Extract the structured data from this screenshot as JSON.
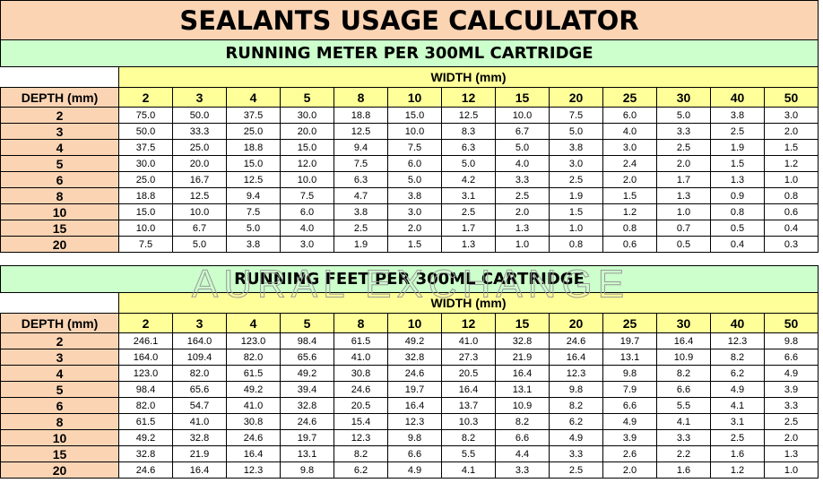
{
  "title": "SEALANTS USAGE CALCULATOR",
  "watermark": "AURAL EXCHANGE",
  "tables": [
    {
      "title": "RUNNING METER PER 300ML CARTRIDGE",
      "width_label": "WIDTH (mm)",
      "depth_label": "DEPTH (mm)",
      "widths": [
        "2",
        "3",
        "4",
        "5",
        "8",
        "10",
        "12",
        "15",
        "20",
        "25",
        "30",
        "40",
        "50"
      ],
      "rows": [
        {
          "depth": "2",
          "values": [
            "75.0",
            "50.0",
            "37.5",
            "30.0",
            "18.8",
            "15.0",
            "12.5",
            "10.0",
            "7.5",
            "6.0",
            "5.0",
            "3.8",
            "3.0"
          ]
        },
        {
          "depth": "3",
          "values": [
            "50.0",
            "33.3",
            "25.0",
            "20.0",
            "12.5",
            "10.0",
            "8.3",
            "6.7",
            "5.0",
            "4.0",
            "3.3",
            "2.5",
            "2.0"
          ]
        },
        {
          "depth": "4",
          "values": [
            "37.5",
            "25.0",
            "18.8",
            "15.0",
            "9.4",
            "7.5",
            "6.3",
            "5.0",
            "3.8",
            "3.0",
            "2.5",
            "1.9",
            "1.5"
          ]
        },
        {
          "depth": "5",
          "values": [
            "30.0",
            "20.0",
            "15.0",
            "12.0",
            "7.5",
            "6.0",
            "5.0",
            "4.0",
            "3.0",
            "2.4",
            "2.0",
            "1.5",
            "1.2"
          ]
        },
        {
          "depth": "6",
          "values": [
            "25.0",
            "16.7",
            "12.5",
            "10.0",
            "6.3",
            "5.0",
            "4.2",
            "3.3",
            "2.5",
            "2.0",
            "1.7",
            "1.3",
            "1.0"
          ]
        },
        {
          "depth": "8",
          "values": [
            "18.8",
            "12.5",
            "9.4",
            "7.5",
            "4.7",
            "3.8",
            "3.1",
            "2.5",
            "1.9",
            "1.5",
            "1.3",
            "0.9",
            "0.8"
          ]
        },
        {
          "depth": "10",
          "values": [
            "15.0",
            "10.0",
            "7.5",
            "6.0",
            "3.8",
            "3.0",
            "2.5",
            "2.0",
            "1.5",
            "1.2",
            "1.0",
            "0.8",
            "0.6"
          ]
        },
        {
          "depth": "15",
          "values": [
            "10.0",
            "6.7",
            "5.0",
            "4.0",
            "2.5",
            "2.0",
            "1.7",
            "1.3",
            "1.0",
            "0.8",
            "0.7",
            "0.5",
            "0.4"
          ]
        },
        {
          "depth": "20",
          "values": [
            "7.5",
            "5.0",
            "3.8",
            "3.0",
            "1.9",
            "1.5",
            "1.3",
            "1.0",
            "0.8",
            "0.6",
            "0.5",
            "0.4",
            "0.3"
          ]
        }
      ]
    },
    {
      "title": "RUNNING FEET PER 300ML CARTRIDGE",
      "width_label": "WIDTH (mm)",
      "depth_label": "DEPTH (mm)",
      "widths": [
        "2",
        "3",
        "4",
        "5",
        "8",
        "10",
        "12",
        "15",
        "20",
        "25",
        "30",
        "40",
        "50"
      ],
      "rows": [
        {
          "depth": "2",
          "values": [
            "246.1",
            "164.0",
            "123.0",
            "98.4",
            "61.5",
            "49.2",
            "41.0",
            "32.8",
            "24.6",
            "19.7",
            "16.4",
            "12.3",
            "9.8"
          ]
        },
        {
          "depth": "3",
          "values": [
            "164.0",
            "109.4",
            "82.0",
            "65.6",
            "41.0",
            "32.8",
            "27.3",
            "21.9",
            "16.4",
            "13.1",
            "10.9",
            "8.2",
            "6.6"
          ]
        },
        {
          "depth": "4",
          "values": [
            "123.0",
            "82.0",
            "61.5",
            "49.2",
            "30.8",
            "24.6",
            "20.5",
            "16.4",
            "12.3",
            "9.8",
            "8.2",
            "6.2",
            "4.9"
          ]
        },
        {
          "depth": "5",
          "values": [
            "98.4",
            "65.6",
            "49.2",
            "39.4",
            "24.6",
            "19.7",
            "16.4",
            "13.1",
            "9.8",
            "7.9",
            "6.6",
            "4.9",
            "3.9"
          ]
        },
        {
          "depth": "6",
          "values": [
            "82.0",
            "54.7",
            "41.0",
            "32.8",
            "20.5",
            "16.4",
            "13.7",
            "10.9",
            "8.2",
            "6.6",
            "5.5",
            "4.1",
            "3.3"
          ]
        },
        {
          "depth": "8",
          "values": [
            "61.5",
            "41.0",
            "30.8",
            "24.6",
            "15.4",
            "12.3",
            "10.3",
            "8.2",
            "6.2",
            "4.9",
            "4.1",
            "3.1",
            "2.5"
          ]
        },
        {
          "depth": "10",
          "values": [
            "49.2",
            "32.8",
            "24.6",
            "19.7",
            "12.3",
            "9.8",
            "8.2",
            "6.6",
            "4.9",
            "3.9",
            "3.3",
            "2.5",
            "2.0"
          ]
        },
        {
          "depth": "15",
          "values": [
            "32.8",
            "21.9",
            "16.4",
            "13.1",
            "8.2",
            "6.6",
            "5.5",
            "4.4",
            "3.3",
            "2.6",
            "2.2",
            "1.6",
            "1.3"
          ]
        },
        {
          "depth": "20",
          "values": [
            "24.6",
            "16.4",
            "12.3",
            "9.8",
            "6.2",
            "4.9",
            "4.1",
            "3.3",
            "2.5",
            "2.0",
            "1.6",
            "1.2",
            "1.0"
          ]
        }
      ]
    }
  ]
}
